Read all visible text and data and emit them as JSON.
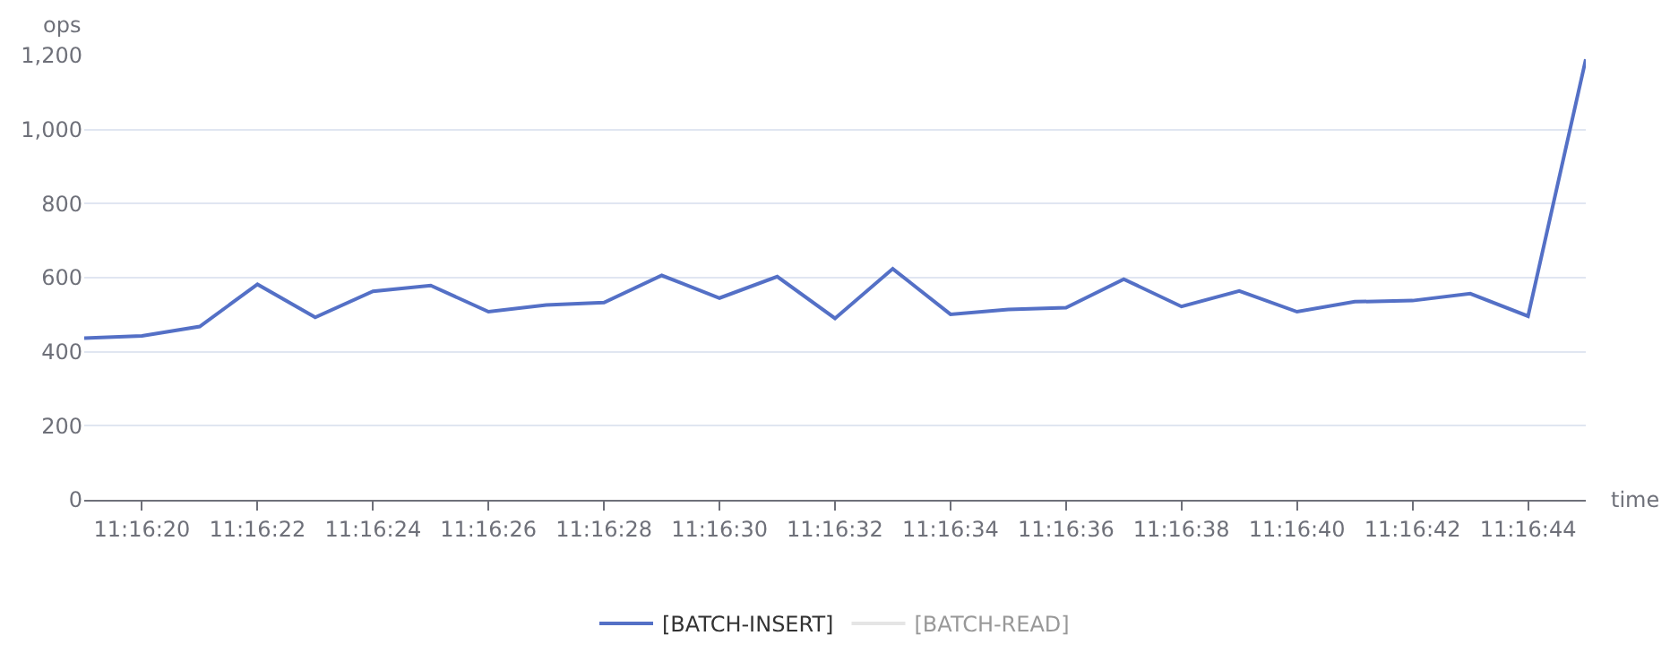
{
  "chart_data": {
    "type": "line",
    "xlabel": "time",
    "ylabel": "ops",
    "categories": [
      null,
      "11:16:20",
      null,
      "11:16:22",
      null,
      "11:16:24",
      null,
      "11:16:26",
      null,
      "11:16:28",
      null,
      "11:16:30",
      null,
      "11:16:32",
      null,
      "11:16:34",
      null,
      "11:16:36",
      null,
      "11:16:38",
      null,
      "11:16:40",
      null,
      "11:16:42",
      null,
      "11:16:44",
      null
    ],
    "series": [
      {
        "name": "[BATCH-INSERT]",
        "color": "#5470c6",
        "values": [
          437,
          443,
          468,
          582,
          493,
          563,
          579,
          508,
          526,
          533,
          606,
          545,
          603,
          490,
          624,
          501,
          514,
          519,
          596,
          522,
          564,
          508,
          535,
          538,
          557,
          496,
          1190
        ]
      },
      {
        "name": "[BATCH-READ]",
        "color": "#cccccc",
        "values": [
          null,
          null,
          null,
          null,
          null,
          null,
          null,
          null,
          null,
          null,
          null,
          null,
          null,
          null,
          null,
          null,
          null,
          null,
          null,
          null,
          null,
          null,
          null,
          null,
          null,
          null,
          null
        ]
      }
    ],
    "ylim": [
      0,
      1200
    ],
    "yticks": [
      0,
      200,
      400,
      600,
      800,
      {
        "value": 1000,
        "label": "1,000"
      },
      {
        "value": 1200,
        "label": "1,200"
      }
    ],
    "grid": "y",
    "legend": "bottom",
    "marker": "none",
    "line_style": "solid"
  }
}
